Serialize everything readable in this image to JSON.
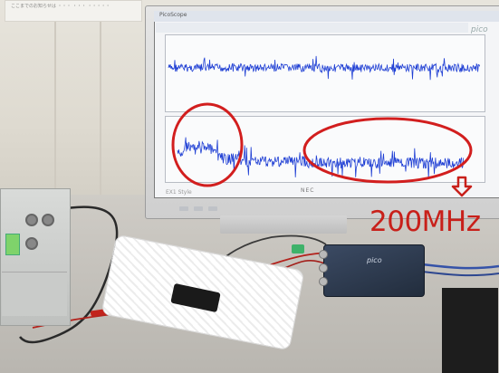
{
  "scene": {
    "wall_paper_text": "ここまでのお知らせは ・・・ ・・・ ・・・・・",
    "annotation_label": "200MHz"
  },
  "oscilloscope_app": {
    "window_title": "PicoScope",
    "brand": "pico",
    "trace_color": "#1f3fd4"
  },
  "monitor": {
    "bezel_logo": "EX1 Style",
    "maker": "NEC"
  },
  "device": {
    "logo": "pico"
  },
  "colors": {
    "annotation_red": "#d21e1e",
    "pico_body": "#2c3a50",
    "gen_display": "#7fd36b"
  }
}
